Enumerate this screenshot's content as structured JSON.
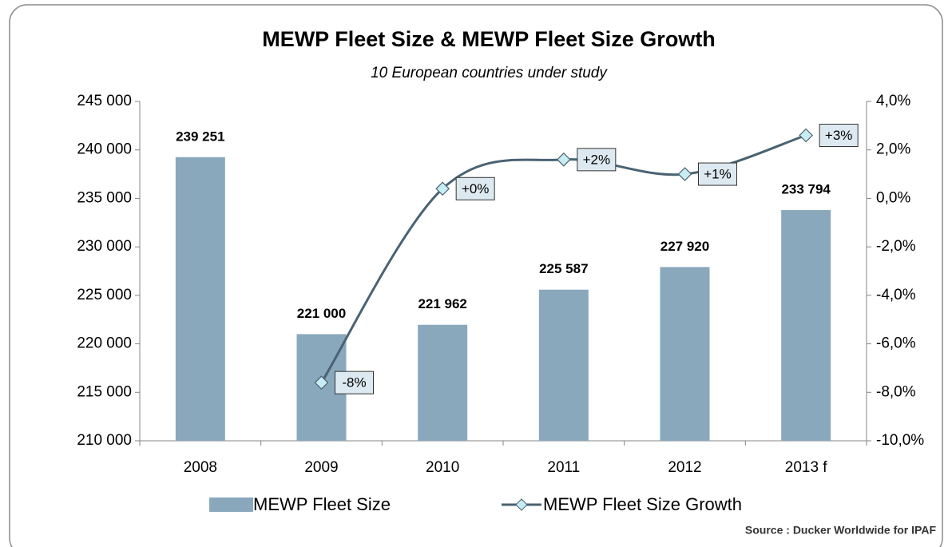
{
  "chart_data": {
    "type": "bar",
    "title": "MEWP Fleet Size & MEWP Fleet Size Growth",
    "subtitle": "10 European countries under study",
    "source": "Source : Ducker Worldwide for IPAF",
    "categories": [
      "2008",
      "2009",
      "2010",
      "2011",
      "2012",
      "2013 f"
    ],
    "series": [
      {
        "name": "MEWP Fleet Size",
        "type": "bar",
        "color": "#8aa8bc",
        "values": [
          239251,
          221000,
          221962,
          225587,
          227920,
          233794
        ],
        "value_labels": [
          "239 251",
          "221 000",
          "221 962",
          "225 587",
          "227 920",
          "233 794"
        ]
      },
      {
        "name": "MEWP Fleet Size Growth",
        "type": "line",
        "axis": "y2",
        "color": "#4a6272",
        "marker_color": "#c8ecf3",
        "values": [
          null,
          -7.6,
          0.4,
          1.6,
          1.0,
          2.6
        ],
        "value_labels": [
          null,
          "-8%",
          "+0%",
          "+2%",
          "+1%",
          "+3%"
        ]
      }
    ],
    "ylim": [
      210000,
      245000
    ],
    "yticks": [
      {
        "value": 210000,
        "label": "210 000"
      },
      {
        "value": 215000,
        "label": "215 000"
      },
      {
        "value": 220000,
        "label": "220 000"
      },
      {
        "value": 225000,
        "label": "225 000"
      },
      {
        "value": 230000,
        "label": "230 000"
      },
      {
        "value": 235000,
        "label": "235 000"
      },
      {
        "value": 240000,
        "label": "240 000"
      },
      {
        "value": 245000,
        "label": "245 000"
      }
    ],
    "y2lim": [
      -10,
      4
    ],
    "y2ticks": [
      {
        "value": -10,
        "label": "-10,0%"
      },
      {
        "value": -8,
        "label": "-8,0%"
      },
      {
        "value": -6,
        "label": "-6,0%"
      },
      {
        "value": -4,
        "label": "-4,0%"
      },
      {
        "value": -2,
        "label": "-2,0%"
      },
      {
        "value": 0,
        "label": "0,0%"
      },
      {
        "value": 2,
        "label": "2,0%"
      },
      {
        "value": 4,
        "label": "4,0%"
      }
    ],
    "grid": false,
    "legend": "bottom"
  }
}
